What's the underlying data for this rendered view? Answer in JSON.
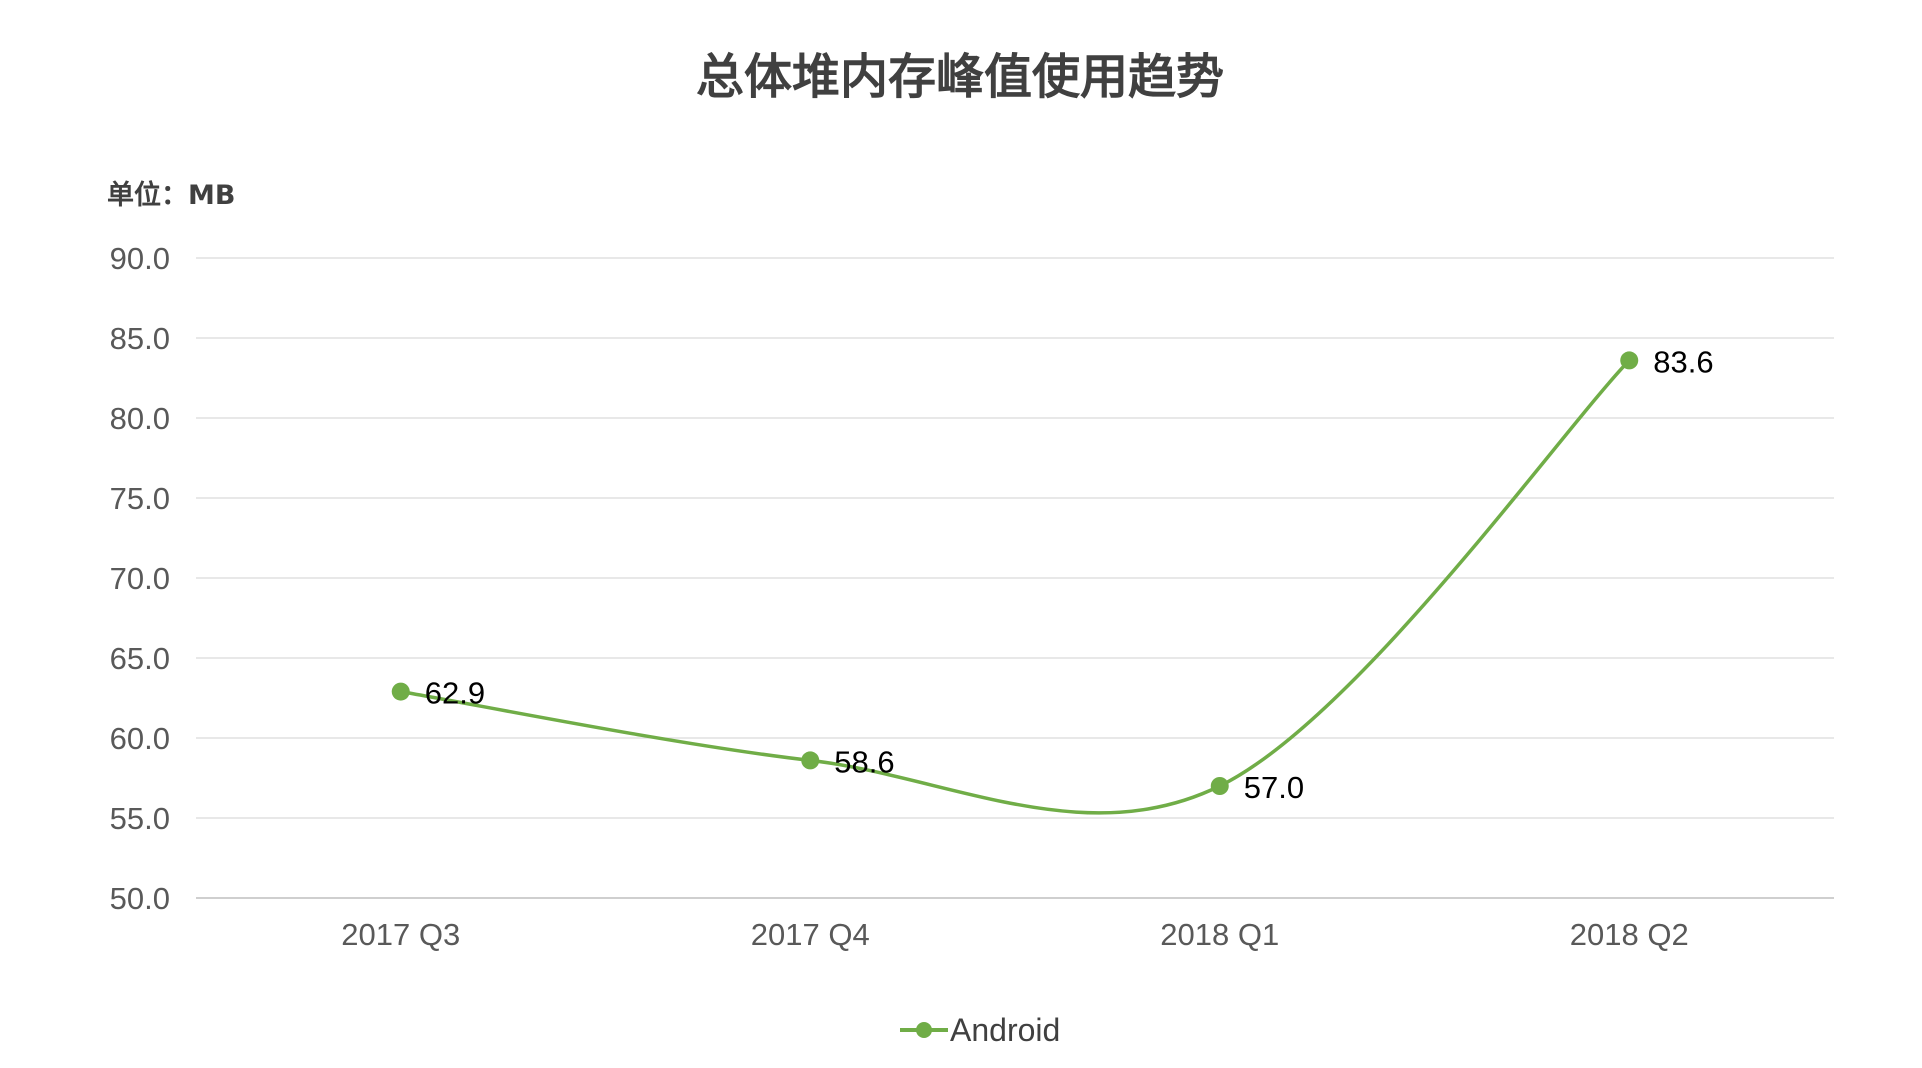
{
  "chart_data": {
    "type": "line",
    "title": "总体堆内存峰值使用趋势",
    "unit_label": "单位：MB",
    "categories": [
      "2017 Q3",
      "2017 Q4",
      "2018 Q1",
      "2018 Q2"
    ],
    "series": [
      {
        "name": "Android",
        "values": [
          62.9,
          58.6,
          57.0,
          83.6
        ],
        "color": "#70ad47"
      }
    ],
    "data_labels": [
      "62.9",
      "58.6",
      "57.0",
      "83.6"
    ],
    "y_ticks": [
      "50.0",
      "55.0",
      "60.0",
      "65.0",
      "70.0",
      "75.0",
      "80.0",
      "85.0",
      "90.0"
    ],
    "ylim": [
      50,
      90
    ],
    "smooth": true,
    "grid": true,
    "legend_position": "bottom"
  }
}
